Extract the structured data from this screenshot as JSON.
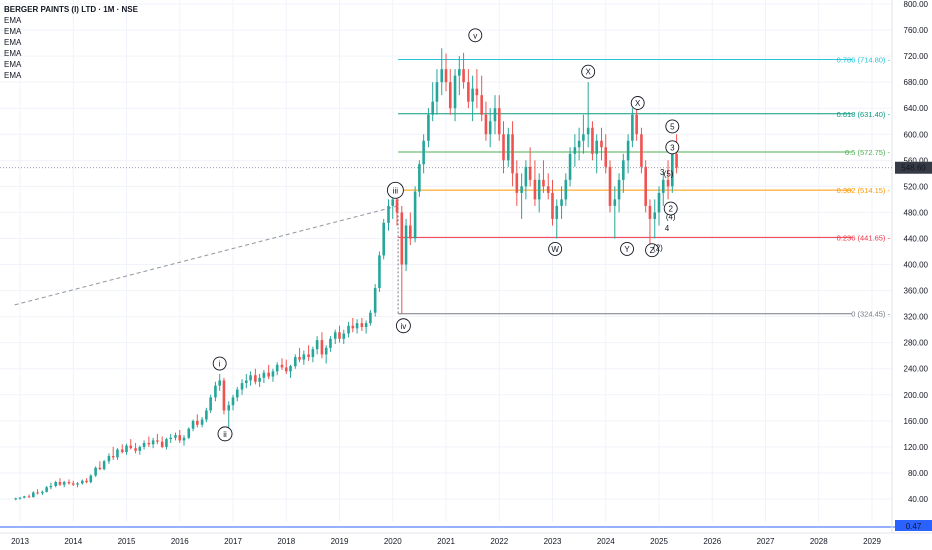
{
  "header": {
    "ticker": "BERGER PAINTS (I) LTD · 1M · NSE",
    "indicators": [
      "EMA",
      "EMA",
      "EMA",
      "EMA",
      "EMA",
      "EMA"
    ]
  },
  "colors": {
    "up": "#26a69a",
    "down": "#ef5350",
    "grid": "#f0f3fa",
    "price_badge": "#363a45",
    "vol_badge": "#2962ff"
  },
  "chart_data": {
    "type": "candlestick",
    "title": "BERGER PAINTS (I) LTD · 1M · NSE",
    "x_ticks": [
      "2013",
      "2014",
      "2015",
      "2016",
      "2017",
      "2018",
      "2019",
      "2020",
      "2021",
      "2022",
      "2023",
      "2024",
      "2025",
      "2026",
      "2027",
      "2028",
      "2029"
    ],
    "y_ticks": [
      "800.00",
      "760.00",
      "720.00",
      "680.00",
      "640.00",
      "600.00",
      "560.00",
      "520.00",
      "480.00",
      "440.00",
      "400.00",
      "360.00",
      "320.00",
      "280.00",
      "240.00",
      "200.00",
      "160.00",
      "120.00",
      "80.00",
      "40.00"
    ],
    "ylim": [
      20,
      810
    ],
    "xlim": [
      2012.9,
      2029.6
    ],
    "last_price": "548.60",
    "volume_label": "0.47",
    "candles": [
      [
        2012.92,
        40,
        42,
        38,
        41
      ],
      [
        2013.0,
        41,
        43,
        39,
        42
      ],
      [
        2013.08,
        42,
        45,
        41,
        44
      ],
      [
        2013.17,
        44,
        47,
        42,
        43
      ],
      [
        2013.25,
        43,
        52,
        42,
        50
      ],
      [
        2013.33,
        50,
        55,
        47,
        49
      ],
      [
        2013.42,
        49,
        53,
        46,
        51
      ],
      [
        2013.5,
        51,
        60,
        50,
        58
      ],
      [
        2013.58,
        58,
        65,
        55,
        60
      ],
      [
        2013.67,
        60,
        68,
        58,
        66
      ],
      [
        2013.75,
        66,
        72,
        60,
        62
      ],
      [
        2013.83,
        62,
        68,
        58,
        66
      ],
      [
        2013.92,
        66,
        70,
        62,
        64
      ],
      [
        2014.0,
        64,
        68,
        60,
        62
      ],
      [
        2014.08,
        62,
        66,
        58,
        64
      ],
      [
        2014.17,
        64,
        70,
        62,
        68
      ],
      [
        2014.25,
        68,
        72,
        64,
        66
      ],
      [
        2014.33,
        66,
        78,
        64,
        76
      ],
      [
        2014.42,
        76,
        90,
        74,
        88
      ],
      [
        2014.5,
        88,
        98,
        84,
        86
      ],
      [
        2014.58,
        86,
        100,
        84,
        98
      ],
      [
        2014.67,
        98,
        110,
        94,
        106
      ],
      [
        2014.75,
        106,
        120,
        100,
        104
      ],
      [
        2014.83,
        104,
        118,
        100,
        116
      ],
      [
        2014.92,
        116,
        124,
        110,
        112
      ],
      [
        2015.0,
        112,
        125,
        108,
        122
      ],
      [
        2015.08,
        122,
        132,
        116,
        118
      ],
      [
        2015.17,
        118,
        126,
        110,
        114
      ],
      [
        2015.25,
        114,
        122,
        108,
        120
      ],
      [
        2015.33,
        120,
        130,
        116,
        126
      ],
      [
        2015.42,
        126,
        136,
        120,
        124
      ],
      [
        2015.5,
        124,
        134,
        118,
        130
      ],
      [
        2015.58,
        130,
        140,
        124,
        128
      ],
      [
        2015.67,
        128,
        136,
        118,
        120
      ],
      [
        2015.75,
        120,
        134,
        116,
        132
      ],
      [
        2015.83,
        132,
        140,
        126,
        134
      ],
      [
        2015.92,
        134,
        142,
        130,
        138
      ],
      [
        2016.0,
        138,
        146,
        126,
        130
      ],
      [
        2016.08,
        130,
        138,
        122,
        134
      ],
      [
        2016.17,
        134,
        150,
        132,
        148
      ],
      [
        2016.25,
        148,
        162,
        144,
        160
      ],
      [
        2016.33,
        160,
        170,
        150,
        154
      ],
      [
        2016.42,
        154,
        166,
        150,
        162
      ],
      [
        2016.5,
        162,
        180,
        158,
        176
      ],
      [
        2016.58,
        176,
        200,
        172,
        196
      ],
      [
        2016.67,
        196,
        220,
        190,
        214
      ],
      [
        2016.75,
        214,
        232,
        206,
        222
      ],
      [
        2016.83,
        222,
        226,
        170,
        176
      ],
      [
        2016.92,
        176,
        190,
        150,
        184
      ],
      [
        2017.0,
        184,
        200,
        176,
        196
      ],
      [
        2017.08,
        196,
        212,
        190,
        208
      ],
      [
        2017.17,
        208,
        224,
        200,
        218
      ],
      [
        2017.25,
        218,
        232,
        210,
        222
      ],
      [
        2017.33,
        222,
        236,
        214,
        230
      ],
      [
        2017.42,
        230,
        240,
        216,
        220
      ],
      [
        2017.5,
        220,
        232,
        212,
        226
      ],
      [
        2017.58,
        226,
        238,
        218,
        234
      ],
      [
        2017.67,
        234,
        246,
        224,
        228
      ],
      [
        2017.75,
        228,
        240,
        220,
        236
      ],
      [
        2017.83,
        236,
        250,
        230,
        246
      ],
      [
        2017.92,
        246,
        256,
        238,
        242
      ],
      [
        2018.0,
        242,
        254,
        232,
        236
      ],
      [
        2018.08,
        236,
        246,
        226,
        244
      ],
      [
        2018.17,
        244,
        262,
        240,
        258
      ],
      [
        2018.25,
        258,
        272,
        250,
        254
      ],
      [
        2018.33,
        254,
        268,
        246,
        262
      ],
      [
        2018.42,
        262,
        276,
        252,
        258
      ],
      [
        2018.5,
        258,
        274,
        250,
        270
      ],
      [
        2018.58,
        270,
        290,
        262,
        284
      ],
      [
        2018.67,
        284,
        296,
        256,
        262
      ],
      [
        2018.75,
        262,
        276,
        248,
        272
      ],
      [
        2018.83,
        272,
        290,
        266,
        286
      ],
      [
        2018.92,
        286,
        300,
        278,
        296
      ],
      [
        2019.0,
        296,
        306,
        280,
        286
      ],
      [
        2019.08,
        286,
        300,
        278,
        294
      ],
      [
        2019.17,
        294,
        312,
        288,
        306
      ],
      [
        2019.25,
        306,
        318,
        296,
        302
      ],
      [
        2019.33,
        302,
        316,
        294,
        310
      ],
      [
        2019.42,
        310,
        318,
        298,
        304
      ],
      [
        2019.5,
        304,
        314,
        294,
        310
      ],
      [
        2019.58,
        310,
        330,
        306,
        326
      ],
      [
        2019.67,
        326,
        370,
        320,
        364
      ],
      [
        2019.75,
        364,
        420,
        358,
        414
      ],
      [
        2019.83,
        414,
        470,
        408,
        464
      ],
      [
        2019.92,
        464,
        500,
        452,
        490
      ],
      [
        2020.0,
        490,
        510,
        470,
        500
      ],
      [
        2020.08,
        500,
        520,
        460,
        480
      ],
      [
        2020.17,
        480,
        490,
        324,
        400
      ],
      [
        2020.25,
        400,
        470,
        390,
        460
      ],
      [
        2020.33,
        460,
        480,
        430,
        440
      ],
      [
        2020.42,
        440,
        520,
        434,
        512
      ],
      [
        2020.5,
        512,
        560,
        504,
        554
      ],
      [
        2020.58,
        554,
        600,
        540,
        590
      ],
      [
        2020.67,
        590,
        640,
        580,
        630
      ],
      [
        2020.75,
        630,
        680,
        620,
        650
      ],
      [
        2020.83,
        650,
        700,
        630,
        680
      ],
      [
        2020.92,
        680,
        732,
        660,
        700
      ],
      [
        2021.0,
        700,
        724,
        666,
        680
      ],
      [
        2021.08,
        680,
        700,
        630,
        640
      ],
      [
        2021.17,
        640,
        700,
        620,
        690
      ],
      [
        2021.25,
        690,
        720,
        660,
        700
      ],
      [
        2021.33,
        700,
        725,
        670,
        680
      ],
      [
        2021.42,
        680,
        700,
        640,
        650
      ],
      [
        2021.5,
        650,
        690,
        620,
        670
      ],
      [
        2021.58,
        670,
        700,
        640,
        660
      ],
      [
        2021.67,
        660,
        690,
        620,
        630
      ],
      [
        2021.75,
        630,
        650,
        590,
        600
      ],
      [
        2021.83,
        600,
        640,
        580,
        620
      ],
      [
        2021.92,
        620,
        660,
        600,
        640
      ],
      [
        2022.0,
        640,
        660,
        590,
        600
      ],
      [
        2022.08,
        600,
        620,
        540,
        560
      ],
      [
        2022.17,
        560,
        610,
        550,
        600
      ],
      [
        2022.25,
        600,
        620,
        520,
        540
      ],
      [
        2022.33,
        540,
        560,
        490,
        510
      ],
      [
        2022.42,
        510,
        540,
        470,
        520
      ],
      [
        2022.5,
        520,
        560,
        500,
        550
      ],
      [
        2022.58,
        550,
        580,
        520,
        530
      ],
      [
        2022.67,
        530,
        560,
        490,
        500
      ],
      [
        2022.75,
        500,
        540,
        480,
        530
      ],
      [
        2022.83,
        530,
        560,
        510,
        520
      ],
      [
        2022.92,
        520,
        540,
        500,
        510
      ],
      [
        2023.0,
        510,
        530,
        460,
        470
      ],
      [
        2023.08,
        470,
        500,
        440,
        490
      ],
      [
        2023.17,
        490,
        520,
        470,
        500
      ],
      [
        2023.25,
        500,
        540,
        490,
        530
      ],
      [
        2023.33,
        530,
        580,
        520,
        570
      ],
      [
        2023.42,
        570,
        600,
        550,
        580
      ],
      [
        2023.5,
        580,
        610,
        560,
        590
      ],
      [
        2023.58,
        590,
        630,
        570,
        600
      ],
      [
        2023.67,
        600,
        680,
        580,
        610
      ],
      [
        2023.75,
        610,
        620,
        560,
        570
      ],
      [
        2023.83,
        570,
        600,
        540,
        590
      ],
      [
        2023.92,
        590,
        610,
        560,
        580
      ],
      [
        2024.0,
        580,
        600,
        540,
        550
      ],
      [
        2024.08,
        550,
        560,
        480,
        490
      ],
      [
        2024.17,
        490,
        520,
        440,
        500
      ],
      [
        2024.25,
        500,
        540,
        480,
        530
      ],
      [
        2024.33,
        530,
        570,
        510,
        560
      ],
      [
        2024.42,
        560,
        600,
        540,
        590
      ],
      [
        2024.5,
        590,
        640,
        580,
        630
      ],
      [
        2024.58,
        630,
        640,
        590,
        600
      ],
      [
        2024.67,
        600,
        610,
        540,
        550
      ],
      [
        2024.75,
        550,
        560,
        480,
        490
      ],
      [
        2024.83,
        490,
        500,
        430,
        470
      ],
      [
        2024.92,
        470,
        500,
        440,
        480
      ],
      [
        2025.0,
        480,
        520,
        460,
        510
      ],
      [
        2025.08,
        510,
        540,
        490,
        530
      ],
      [
        2025.17,
        530,
        560,
        500,
        520
      ],
      [
        2025.25,
        520,
        580,
        510,
        570
      ],
      [
        2025.33,
        570,
        600,
        540,
        549
      ]
    ],
    "ema_line": {
      "from": [
        2012.9,
        338
      ],
      "to": [
        2020.1,
        490
      ]
    },
    "fib_levels": [
      {
        "label": "0.786 (714.80)",
        "value": 714.8,
        "color": "#26c6da"
      },
      {
        "label": "0.618 (631.40)",
        "value": 631.4,
        "color": "#089981"
      },
      {
        "label": "0.5 (572.75)",
        "value": 572.75,
        "color": "#4caf50"
      },
      {
        "label": "0.382 (514.15)",
        "value": 514.15,
        "color": "#ff9800"
      },
      {
        "label": "0.236 (441.65)",
        "value": 441.65,
        "color": "#f23645"
      },
      {
        "label": "0 (324.45)",
        "value": 324.45,
        "color": "#787b86"
      }
    ],
    "fib_x_start": 2020.1,
    "wave_labels": [
      {
        "text": "v",
        "x": 2021.55,
        "y": 752,
        "circled": true
      },
      {
        "text": "iii",
        "x": 2020.05,
        "y": 514,
        "circled": true
      },
      {
        "text": "iv",
        "x": 2020.2,
        "y": 306,
        "circled": true
      },
      {
        "text": "i",
        "x": 2016.75,
        "y": 248,
        "circled": true
      },
      {
        "text": "ii",
        "x": 2016.85,
        "y": 140,
        "circled": true
      },
      {
        "text": "X",
        "x": 2023.67,
        "y": 696,
        "circled": true
      },
      {
        "text": "X",
        "x": 2024.6,
        "y": 648,
        "circled": true
      },
      {
        "text": "W",
        "x": 2023.05,
        "y": 424,
        "circled": true
      },
      {
        "text": "Y",
        "x": 2024.4,
        "y": 424,
        "circled": true
      },
      {
        "text": "Z",
        "x": 2024.87,
        "y": 422,
        "circled": true
      },
      {
        "text": "5",
        "x": 2025.25,
        "y": 612,
        "circled": true
      },
      {
        "text": "3",
        "x": 2025.25,
        "y": 580,
        "circled": true
      },
      {
        "text": "3",
        "x": 2025.06,
        "y": 542,
        "circled": false
      },
      {
        "text": "(5)",
        "x": 2025.18,
        "y": 540,
        "circled": false
      },
      {
        "text": "(4)",
        "x": 2025.22,
        "y": 474,
        "circled": false
      },
      {
        "text": "4",
        "x": 2025.15,
        "y": 456,
        "circled": false
      },
      {
        "text": "2",
        "x": 2025.22,
        "y": 486,
        "circled": true
      },
      {
        "text": "(2)",
        "x": 2024.98,
        "y": 426,
        "circled": false
      }
    ]
  }
}
